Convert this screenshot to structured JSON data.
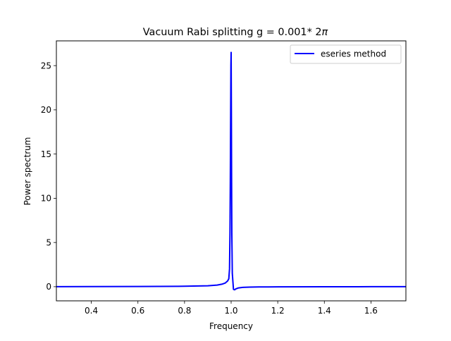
{
  "chart_data": {
    "type": "line",
    "title": "Vacuum Rabi splitting g = 0.001* 2",
    "title_symbol": "π",
    "xlabel": "Frequency",
    "ylabel": "Power spectrum",
    "xlim": [
      0.25,
      1.75
    ],
    "ylim": [
      -1.6,
      27.8
    ],
    "xticks": [
      0.4,
      0.6,
      0.8,
      1.0,
      1.2,
      1.4,
      1.6
    ],
    "xtick_labels": [
      "0.4",
      "0.6",
      "0.8",
      "1.0",
      "1.2",
      "1.4",
      "1.6"
    ],
    "yticks": [
      0,
      5,
      10,
      15,
      20,
      25
    ],
    "ytick_labels": [
      "0",
      "5",
      "10",
      "15",
      "20",
      "25"
    ],
    "grid": false,
    "legend_position": "top-right",
    "series": [
      {
        "name": "eseries method",
        "color": "#0000ff",
        "x": [
          0.25,
          0.4,
          0.6,
          0.8,
          0.9,
          0.94,
          0.96,
          0.975,
          0.985,
          0.99,
          0.993,
          0.995,
          0.9965,
          0.998,
          0.999,
          1.0,
          1.001,
          1.002,
          1.003,
          1.005,
          1.01,
          1.015,
          1.02,
          1.03,
          1.05,
          1.08,
          1.12,
          1.2,
          1.4,
          1.6,
          1.75
        ],
        "y": [
          0.0,
          0.01,
          0.02,
          0.05,
          0.1,
          0.18,
          0.28,
          0.42,
          0.65,
          0.9,
          2.0,
          6.0,
          12.0,
          20.0,
          25.0,
          26.5,
          20.0,
          12.0,
          6.0,
          1.5,
          -0.3,
          -0.35,
          -0.25,
          -0.15,
          -0.08,
          -0.05,
          -0.03,
          -0.02,
          -0.01,
          0.0,
          0.0
        ]
      }
    ]
  }
}
